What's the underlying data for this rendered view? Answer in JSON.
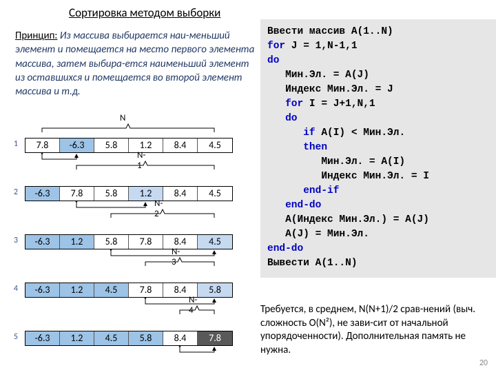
{
  "title": "Сортировка методом выборки",
  "principle_label": "Принцип:",
  "principle_text": "Из массива выбирается наи-меньший элемент и помещается на место первого элемента массива, затем выбира-ется наименьший элемент из оставшихся и помещается во второй элемент массива и т.д.",
  "page_number": "20",
  "footnote": "Требуется, в среднем, N(N+1)/2 срав-нений (выч. сложность O(N²), не зави-сит от начальной упорядоченности). Дополнительная память не нужна.",
  "bracket_labels": [
    "N",
    "N-1",
    "N-2",
    "N-3",
    "N-4"
  ],
  "rows": [
    {
      "n": "1",
      "cells": [
        {
          "v": "7.8",
          "c": "white"
        },
        {
          "v": "-6.3",
          "c": "blue"
        },
        {
          "v": "5.8",
          "c": "white"
        },
        {
          "v": "1.2",
          "c": "white"
        },
        {
          "v": "8.4",
          "c": "white"
        },
        {
          "v": "4.5",
          "c": "white"
        }
      ],
      "swap_from": 0,
      "swap_to": 1
    },
    {
      "n": "2",
      "cells": [
        {
          "v": "-6.3",
          "c": "blue"
        },
        {
          "v": "7.8",
          "c": "white"
        },
        {
          "v": "5.8",
          "c": "white"
        },
        {
          "v": "1.2",
          "c": "lblue"
        },
        {
          "v": "8.4",
          "c": "white"
        },
        {
          "v": "4.5",
          "c": "white"
        }
      ],
      "swap_from": 1,
      "swap_to": 3
    },
    {
      "n": "3",
      "cells": [
        {
          "v": "-6.3",
          "c": "blue"
        },
        {
          "v": "1.2",
          "c": "blue"
        },
        {
          "v": "5.8",
          "c": "white"
        },
        {
          "v": "7.8",
          "c": "white"
        },
        {
          "v": "8.4",
          "c": "white"
        },
        {
          "v": "4.5",
          "c": "lblue"
        }
      ],
      "swap_from": 2,
      "swap_to": 5
    },
    {
      "n": "4",
      "cells": [
        {
          "v": "-6.3",
          "c": "blue"
        },
        {
          "v": "1.2",
          "c": "blue"
        },
        {
          "v": "4.5",
          "c": "blue"
        },
        {
          "v": "7.8",
          "c": "white"
        },
        {
          "v": "8.4",
          "c": "white"
        },
        {
          "v": "5.8",
          "c": "lblue"
        }
      ],
      "swap_from": 3,
      "swap_to": 5
    },
    {
      "n": "5",
      "cells": [
        {
          "v": "-6.3",
          "c": "blue"
        },
        {
          "v": "1.2",
          "c": "blue"
        },
        {
          "v": "4.5",
          "c": "blue"
        },
        {
          "v": "5.8",
          "c": "blue"
        },
        {
          "v": "8.4",
          "c": "white"
        },
        {
          "v": "7.8",
          "c": "dark"
        }
      ],
      "swap_from": 4,
      "swap_to": 5
    }
  ],
  "code": {
    "l1": "Ввести массив A(1..N)",
    "l2a": "for",
    "l2b": " J = 1,N-1,1",
    "l3": "do",
    "l4": "   Мин.Эл. = A(J)",
    "l5": "   Индекс Мин.Эл. = J",
    "l6a": "   ",
    "l6b": "for",
    "l6c": " I = J+1,N,1",
    "l7a": "   ",
    "l7b": "do",
    "l8a": "      ",
    "l8b": "if",
    "l8c": " A(I) < Мин.Эл.",
    "l9a": "      ",
    "l9b": "then",
    "l10": "         Мин.Эл. = A(I)",
    "l11": "         Индекс Мин.Эл. = I",
    "l12a": "      ",
    "l12b": "end-if",
    "l13a": "   ",
    "l13b": "end-do",
    "l14": "   A(Индекс Мин.Эл.) = A(J)",
    "l15": "   A(J) = Мин.Эл.",
    "l16": "end-do",
    "l17": "Вывести A(1..N)"
  }
}
